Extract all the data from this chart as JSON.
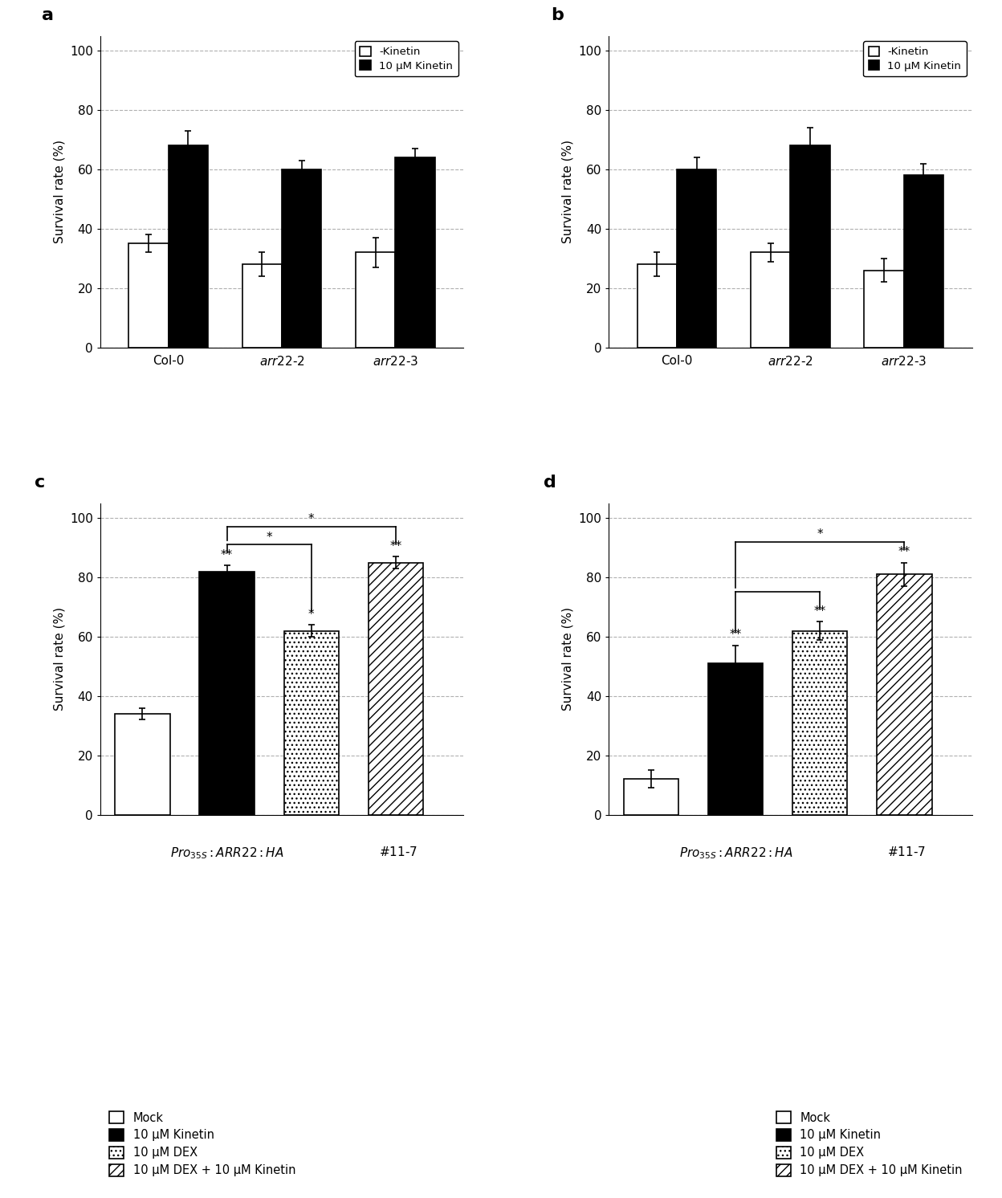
{
  "panel_a": {
    "no_kinetin": [
      35,
      28,
      32
    ],
    "no_kinetin_err": [
      3,
      4,
      5
    ],
    "kinetin": [
      68,
      60,
      64
    ],
    "kinetin_err": [
      5,
      3,
      3
    ]
  },
  "panel_b": {
    "no_kinetin": [
      28,
      32,
      26
    ],
    "no_kinetin_err": [
      4,
      3,
      4
    ],
    "kinetin": [
      60,
      68,
      58
    ],
    "kinetin_err": [
      4,
      6,
      4
    ]
  },
  "panel_c": {
    "mock": 34,
    "mock_err": 2,
    "kinetin": 82,
    "kinetin_err": 2,
    "dex": 62,
    "dex_err": 2,
    "dex_kinetin": 85,
    "dex_kinetin_err": 2
  },
  "panel_d": {
    "mock": 12,
    "mock_err": 3,
    "kinetin": 51,
    "kinetin_err": 6,
    "dex": 62,
    "dex_err": 3,
    "dex_kinetin": 81,
    "dex_kinetin_err": 4
  },
  "ylabel": "Survival rate (%)",
  "yticks": [
    0,
    20,
    40,
    60,
    80,
    100
  ],
  "grid_color": "#b0b0b0",
  "xtick_ab": [
    "Col-0",
    "arr22-2",
    "arr22-3"
  ],
  "legend_ab": [
    "-Kinetin",
    "10 μM Kinetin"
  ],
  "legend_cd": [
    "Mock",
    "10 μM Kinetin",
    "10 μM DEX",
    "10 μM DEX + 10 μM Kinetin"
  ]
}
